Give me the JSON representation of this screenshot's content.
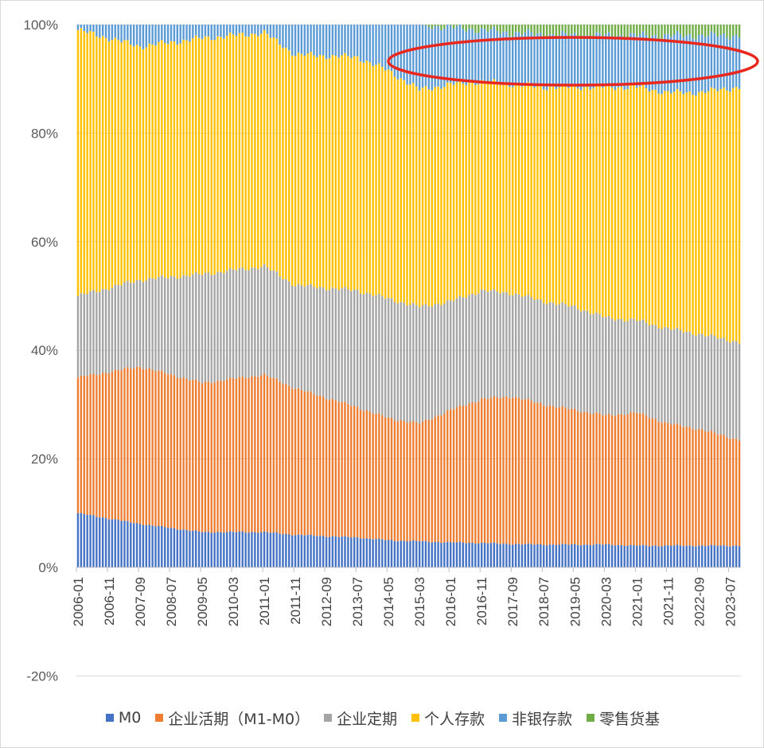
{
  "chart_data": {
    "type": "bar",
    "stacked": true,
    "normalized": true,
    "ylim": [
      -0.2,
      1.0
    ],
    "y_ticks": [
      "100%",
      "80%",
      "60%",
      "40%",
      "20%",
      "0%",
      "-20%"
    ],
    "x_tick_labels": [
      "2006-01",
      "2006-11",
      "2007-09",
      "2008-07",
      "2009-05",
      "2010-03",
      "2011-01",
      "2011-11",
      "2012-09",
      "2013-07",
      "2014-05",
      "2015-03",
      "2016-01",
      "2016-11",
      "2017-09",
      "2018-07",
      "2019-05",
      "2020-03",
      "2021-01",
      "2021-11",
      "2022-09",
      "2023-07"
    ],
    "x_range": [
      "2006-01",
      "2023-10"
    ],
    "grid": "horizontal",
    "legend_position": "bottom",
    "series_names": [
      "M0",
      "企业活期（M1-M0）",
      "企业定期",
      "个人存款",
      "非银存款",
      "零售货基"
    ],
    "series_colors": [
      "#4472C4",
      "#ED7D31",
      "#A5A5A5",
      "#FFC000",
      "#5B9BD5",
      "#70AD47"
    ],
    "annotation": "red-ellipse-highlight",
    "cumulative_share_keypoints": [
      {
        "date": "2006-01",
        "M0": 0.1,
        "企业活期（M1-M0）": 0.35,
        "企业定期": 0.5,
        "个人存款": 0.99,
        "非银存款": 1.0,
        "零售货基": 1.0
      },
      {
        "date": "2007-09",
        "M0": 0.08,
        "企业活期（M1-M0）": 0.37,
        "企业定期": 0.53,
        "个人存款": 0.96,
        "非银存款": 1.0,
        "零售货基": 1.0
      },
      {
        "date": "2009-05",
        "M0": 0.065,
        "企业活期（M1-M0）": 0.34,
        "企业定期": 0.54,
        "个人存款": 0.975,
        "非银存款": 1.0,
        "零售货基": 1.0
      },
      {
        "date": "2011-01",
        "M0": 0.065,
        "企业活期（M1-M0）": 0.355,
        "企业定期": 0.555,
        "个人存款": 0.985,
        "非银存款": 1.0,
        "零售货基": 1.0
      },
      {
        "date": "2011-11",
        "M0": 0.06,
        "企业活期（M1-M0）": 0.33,
        "企业定期": 0.52,
        "个人存款": 0.945,
        "非银存款": 1.0,
        "零售货基": 1.0
      },
      {
        "date": "2013-07",
        "M0": 0.055,
        "企业活期（M1-M0）": 0.295,
        "企业定期": 0.51,
        "个人存款": 0.94,
        "非银存款": 1.0,
        "零售货基": 1.0
      },
      {
        "date": "2014-05",
        "M0": 0.05,
        "企业活期（M1-M0）": 0.275,
        "企业定期": 0.495,
        "个人存款": 0.915,
        "非银存款": 1.0,
        "零售货基": 1.0
      },
      {
        "date": "2015-03",
        "M0": 0.048,
        "企业活期（M1-M0）": 0.265,
        "企业定期": 0.48,
        "个人存款": 0.88,
        "非银存款": 1.0,
        "零售货基": 1.0
      },
      {
        "date": "2016-01",
        "M0": 0.046,
        "企业活期（M1-M0）": 0.29,
        "企业定期": 0.49,
        "个人存款": 0.89,
        "非银存款": 0.995,
        "零售货基": 1.0
      },
      {
        "date": "2016-11",
        "M0": 0.045,
        "企业活期（M1-M0）": 0.31,
        "企业定期": 0.51,
        "个人存款": 0.895,
        "非银存款": 0.99,
        "零售货基": 1.0
      },
      {
        "date": "2017-09",
        "M0": 0.043,
        "企业活期（M1-M0）": 0.315,
        "企业定期": 0.505,
        "个人存款": 0.89,
        "非银存款": 0.985,
        "零售货基": 1.0
      },
      {
        "date": "2018-07",
        "M0": 0.042,
        "企业活期（M1-M0）": 0.3,
        "企业定期": 0.49,
        "个人存款": 0.885,
        "非银存款": 0.982,
        "零售货基": 1.0
      },
      {
        "date": "2019-05",
        "M0": 0.042,
        "企业活期（M1-M0）": 0.29,
        "企业定期": 0.48,
        "个人存款": 0.885,
        "非银存款": 0.98,
        "零售货基": 1.0
      },
      {
        "date": "2020-03",
        "M0": 0.042,
        "企业活期（M1-M0）": 0.28,
        "企业定期": 0.46,
        "个人存款": 0.885,
        "非银存款": 0.98,
        "零售货基": 1.0
      },
      {
        "date": "2021-01",
        "M0": 0.04,
        "企业活期（M1-M0）": 0.285,
        "企业定期": 0.455,
        "个人存款": 0.885,
        "非银存款": 0.98,
        "零售货基": 1.0
      },
      {
        "date": "2021-11",
        "M0": 0.04,
        "企业活期（M1-M0）": 0.265,
        "企业定期": 0.44,
        "个人存款": 0.875,
        "非银存款": 0.98,
        "零售货基": 1.0
      },
      {
        "date": "2022-09",
        "M0": 0.04,
        "企业活期（M1-M0）": 0.255,
        "企业定期": 0.43,
        "个人存款": 0.875,
        "非银存款": 0.98,
        "零售货基": 1.0
      },
      {
        "date": "2023-10",
        "M0": 0.04,
        "企业活期（M1-M0）": 0.235,
        "企业定期": 0.415,
        "个人存款": 0.885,
        "非银存款": 0.98,
        "零售货基": 1.0
      }
    ]
  }
}
